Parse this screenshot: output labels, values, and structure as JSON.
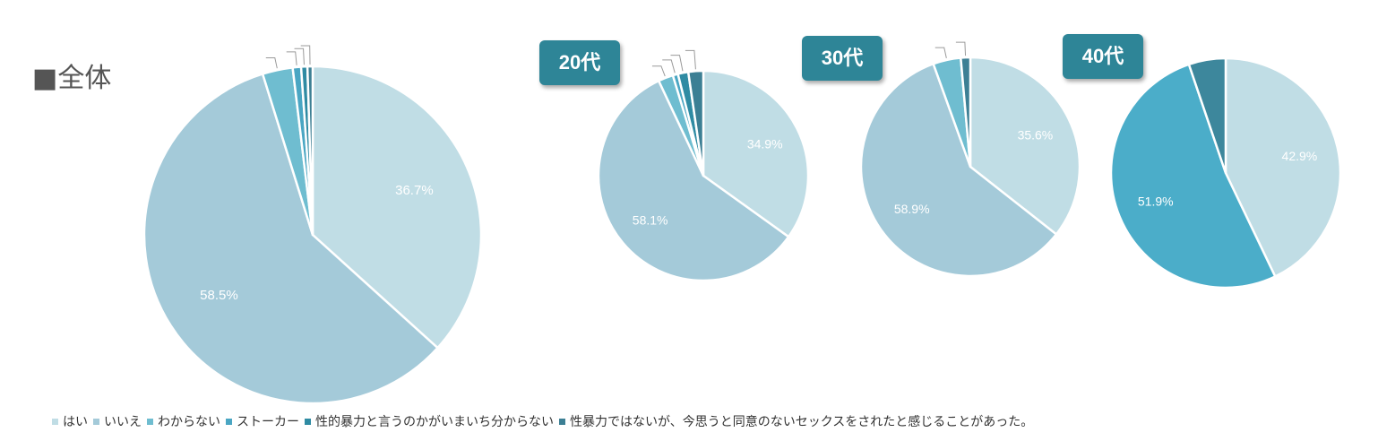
{
  "page": {
    "overall_title": "■全体",
    "age_labels": [
      "20代",
      "30代",
      "40代"
    ]
  },
  "colors": {
    "はい": "#c0dde5",
    "いいえ": "#a4cad9",
    "わからない": "#6fbdd0",
    "ストーカー": "#4aa6c3",
    "性的暴力と言うのかがいまいち分からない": "#2f8ba3",
    "性暴力ではないが、今思うと同意のないセックスをされたと感じることがあった。": "#3c7f94",
    "40代_いいえ": "#4badc9",
    "40代_last": "#3d879c"
  },
  "legend": [
    "はい",
    "いいえ",
    "わからない",
    "ストーカー",
    "性的暴力と言うのかがいまいち分からない",
    "性暴力ではないが、今思うと同意のないセックスをされたと感じることがあった。"
  ],
  "chart_data": [
    {
      "type": "pie",
      "title": "■全体",
      "categories": [
        "はい",
        "いいえ",
        "わからない",
        "ストーカー",
        "性的暴力と言うのかがいまいち分からない",
        "性暴力ではないが、今思うと同意のないセックスをされたと感じることがあった。"
      ],
      "values": [
        36.7,
        58.5,
        2.9,
        0.8,
        0.6,
        0.5
      ],
      "data_labels": [
        "36.7%",
        "58.5%",
        "",
        "",
        "",
        ""
      ]
    },
    {
      "type": "pie",
      "title": "20代",
      "categories": [
        "はい",
        "いいえ",
        "わからない",
        "ストーカー",
        "性的暴力と言うのかがいまいち分からない",
        "性暴力ではないが、今思うと同意のないセックスをされたと感じることがあった。"
      ],
      "values": [
        34.9,
        58.1,
        2.3,
        0.8,
        1.6,
        2.3
      ],
      "data_labels": [
        "34.9%",
        "58.1%",
        "",
        "",
        "",
        ""
      ]
    },
    {
      "type": "pie",
      "title": "30代",
      "categories": [
        "はい",
        "いいえ",
        "わからない",
        "ストーカー",
        "性的暴力と言うのかがいまいち分からない",
        "性暴力ではないが、今思うと同意のないセックスをされたと感じることがあった。"
      ],
      "values": [
        35.6,
        58.9,
        4.1,
        0.0,
        0.0,
        1.4
      ],
      "data_labels": [
        "35.6%",
        "58.9%",
        "",
        "",
        "",
        ""
      ]
    },
    {
      "type": "pie",
      "title": "40代",
      "categories": [
        "はい",
        "いいえ",
        "性暴力ではないが、今思うと同意のないセックスをされたと感じることがあった。"
      ],
      "values": [
        42.9,
        51.9,
        5.2
      ],
      "data_labels": [
        "42.9%",
        "51.9%",
        ""
      ]
    }
  ]
}
